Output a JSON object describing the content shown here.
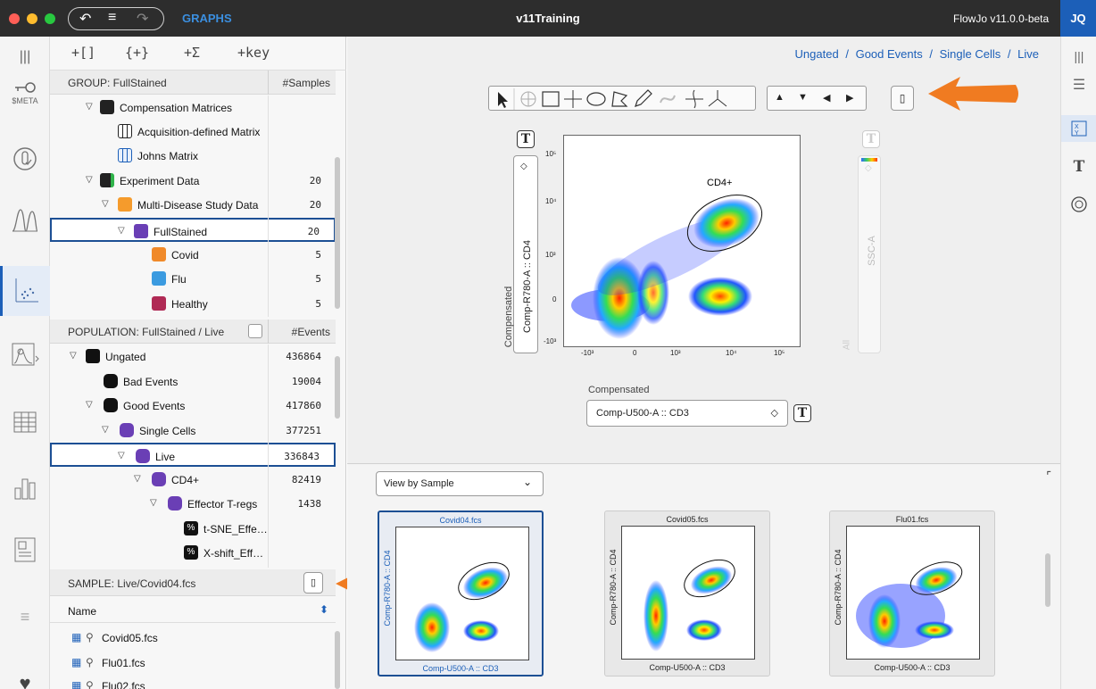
{
  "titlebar": {
    "graphs_label": "GRAPHS",
    "app_title": "v11Training",
    "version": "FlowJo v11.0.0-beta",
    "user_initials": "JQ"
  },
  "left_rail": {
    "meta_label": "$META"
  },
  "workspace": {
    "toolbar": [
      "+[]",
      "{+}",
      "+Σ",
      "+key"
    ],
    "group_header": {
      "title": "GROUP: FullStained",
      "count_label": "#Samples"
    },
    "groups": [
      {
        "label": "Compensation Matrices",
        "count": "",
        "indent": 1
      },
      {
        "label": "Acquisition-defined Matrix",
        "count": "",
        "indent": 2
      },
      {
        "label": "Johns Matrix",
        "count": "",
        "indent": 2
      },
      {
        "label": "Experiment Data",
        "count": "20",
        "indent": 1
      },
      {
        "label": "Multi-Disease Study Data",
        "count": "20",
        "indent": 2
      },
      {
        "label": "FullStained",
        "count": "20",
        "indent": 3
      },
      {
        "label": "Covid",
        "count": "5",
        "indent": 4
      },
      {
        "label": "Flu",
        "count": "5",
        "indent": 4
      },
      {
        "label": "Healthy",
        "count": "5",
        "indent": 4
      }
    ],
    "population_header": {
      "title": "POPULATION: FullStained / Live",
      "count_label": "#Events"
    },
    "populations": [
      {
        "label": "Ungated",
        "count": "436864"
      },
      {
        "label": "Bad Events",
        "count": "19004"
      },
      {
        "label": "Good Events",
        "count": "417860"
      },
      {
        "label": "Single Cells",
        "count": "377251"
      },
      {
        "label": "Live",
        "count": "336843"
      },
      {
        "label": "CD4+",
        "count": "82419"
      },
      {
        "label": "Effector T-regs",
        "count": "1438"
      },
      {
        "label": "t-SNE_Effe…",
        "count": ""
      },
      {
        "label": "X-shift_Eff…",
        "count": ""
      }
    ],
    "sample_header": {
      "title": "SAMPLE: Live/Covid04.fcs"
    },
    "sample_col": "Name",
    "samples": [
      "Covid05.fcs",
      "Flu01.fcs",
      "Flu02.fcs"
    ]
  },
  "main": {
    "breadcrumb": [
      "Ungated",
      "/",
      "Good Events",
      "/",
      "Single Cells",
      "/",
      "Live"
    ],
    "y_param": "Comp-R780-A :: CD4",
    "y_type": "Compensated",
    "right_param": "SSC-A",
    "right_type": "All",
    "x_type": "Compensated",
    "x_param": "Comp-U500-A :: CD3",
    "gate_label": "CD4+",
    "y_ticks": [
      "10⁵",
      "10⁴",
      "10³",
      "0",
      "-10³"
    ],
    "x_ticks": [
      "-10³",
      "0",
      "10³",
      "10⁴",
      "10⁵"
    ],
    "view_select": "View by Sample",
    "thumbnails": [
      {
        "name": "Covid04.fcs",
        "x": "Comp-U500-A :: CD3",
        "y": "Comp-R780-A :: CD4"
      },
      {
        "name": "Covid05.fcs",
        "x": "Comp-U500-A :: CD3",
        "y": "Comp-R780-A :: CD4"
      },
      {
        "name": "Flu01.fcs",
        "x": "Comp-U500-A :: CD3",
        "y": "Comp-R780-A :: CD4"
      }
    ]
  },
  "colors": {
    "accent": "#1c5fb8",
    "arrow": "#f07b21",
    "titlebar": "#2d2d2d"
  }
}
